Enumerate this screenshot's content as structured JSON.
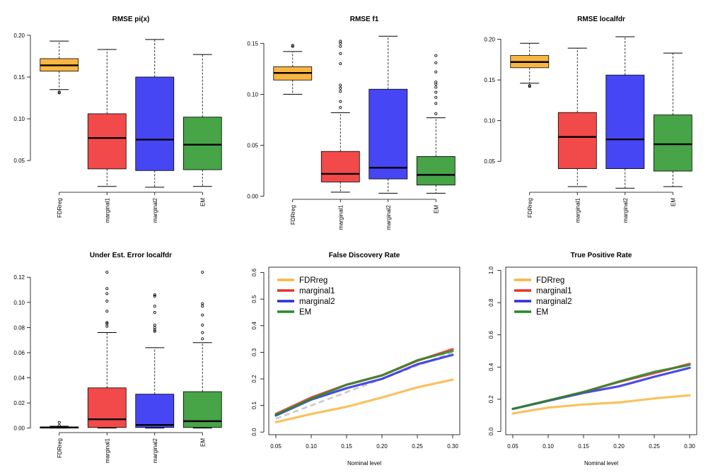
{
  "colors": {
    "FDRreg": "#F9B642",
    "marginal1": "#F24A4A",
    "marginal2": "#4646F5",
    "EM": "#47A447",
    "line_FDRreg": "#F9B642",
    "line_marginal1": "#E8302C",
    "line_marginal2": "#2B2BE0",
    "line_EM": "#2A8A2A",
    "reference": "#C8C8C8"
  },
  "chart_data": [
    {
      "type": "box",
      "title": "RMSE pi(x)",
      "categories": [
        "FDRreg",
        "marginal1",
        "marginal2",
        "EM"
      ],
      "ylim": [
        0.012,
        0.205
      ],
      "yticks": [
        0.05,
        0.1,
        0.15,
        0.2
      ],
      "ytick_labels": [
        "0.05",
        "0.10",
        "0.15",
        "0.20"
      ],
      "boxes": [
        {
          "name": "FDRreg",
          "min": 0.135,
          "q1": 0.157,
          "median": 0.164,
          "q3": 0.172,
          "max": 0.193,
          "outliers": [
            0.131,
            0.132
          ]
        },
        {
          "name": "marginal1",
          "min": 0.019,
          "q1": 0.04,
          "median": 0.077,
          "q3": 0.106,
          "max": 0.183,
          "outliers": []
        },
        {
          "name": "marginal2",
          "min": 0.018,
          "q1": 0.038,
          "median": 0.075,
          "q3": 0.15,
          "max": 0.195,
          "outliers": []
        },
        {
          "name": "EM",
          "min": 0.019,
          "q1": 0.039,
          "median": 0.069,
          "q3": 0.102,
          "max": 0.177,
          "outliers": []
        }
      ]
    },
    {
      "type": "box",
      "title": "RMSE f1",
      "categories": [
        "FDRreg",
        "marginal1",
        "marginal2",
        "EM"
      ],
      "ylim": [
        -0.003,
        0.162
      ],
      "yticks": [
        0.0,
        0.05,
        0.1,
        0.15
      ],
      "ytick_labels": [
        "0.00",
        "0.05",
        "0.10",
        "0.15"
      ],
      "boxes": [
        {
          "name": "FDRreg",
          "min": 0.1,
          "q1": 0.114,
          "median": 0.121,
          "q3": 0.127,
          "max": 0.142,
          "outliers": [
            0.147,
            0.148
          ]
        },
        {
          "name": "marginal1",
          "min": 0.004,
          "q1": 0.014,
          "median": 0.022,
          "q3": 0.044,
          "max": 0.082,
          "outliers": [
            0.087,
            0.093,
            0.103,
            0.106,
            0.109,
            0.13,
            0.14,
            0.147,
            0.15,
            0.152
          ]
        },
        {
          "name": "marginal2",
          "min": 0.003,
          "q1": 0.017,
          "median": 0.028,
          "q3": 0.105,
          "max": 0.157,
          "outliers": []
        },
        {
          "name": "EM",
          "min": 0.003,
          "q1": 0.011,
          "median": 0.021,
          "q3": 0.039,
          "max": 0.077,
          "outliers": [
            0.081,
            0.091,
            0.097,
            0.102,
            0.107,
            0.11,
            0.112,
            0.122,
            0.131,
            0.138
          ]
        }
      ]
    },
    {
      "type": "box",
      "title": "RMSE localfdr",
      "categories": [
        "FDRreg",
        "marginal1",
        "marginal2",
        "EM"
      ],
      "ylim": [
        0.012,
        0.21
      ],
      "yticks": [
        0.05,
        0.1,
        0.15,
        0.2
      ],
      "ytick_labels": [
        "0.05",
        "0.10",
        "0.15",
        "0.20"
      ],
      "boxes": [
        {
          "name": "FDRreg",
          "min": 0.146,
          "q1": 0.165,
          "median": 0.172,
          "q3": 0.18,
          "max": 0.195,
          "outliers": [
            0.142,
            0.143
          ]
        },
        {
          "name": "marginal1",
          "min": 0.019,
          "q1": 0.041,
          "median": 0.08,
          "q3": 0.11,
          "max": 0.189,
          "outliers": []
        },
        {
          "name": "marginal2",
          "min": 0.017,
          "q1": 0.041,
          "median": 0.077,
          "q3": 0.156,
          "max": 0.203,
          "outliers": []
        },
        {
          "name": "EM",
          "min": 0.019,
          "q1": 0.038,
          "median": 0.071,
          "q3": 0.107,
          "max": 0.183,
          "outliers": []
        }
      ]
    },
    {
      "type": "box",
      "title": "Under Est. Error localfdr",
      "categories": [
        "FDRreg",
        "marginal1",
        "marginal2",
        "EM"
      ],
      "ylim": [
        -0.003,
        0.128
      ],
      "yticks": [
        0.0,
        0.02,
        0.04,
        0.06,
        0.08,
        0.1,
        0.12
      ],
      "ytick_labels": [
        "0.00",
        "0.02",
        "0.04",
        "0.06",
        "0.08",
        "0.10",
        "0.12"
      ],
      "boxes": [
        {
          "name": "FDRreg",
          "min": 0.0,
          "q1": 0.0,
          "median": 0.0005,
          "q3": 0.001,
          "max": 0.0015,
          "outliers": [
            0.002,
            0.0045
          ]
        },
        {
          "name": "marginal1",
          "min": 0.0,
          "q1": 0.0005,
          "median": 0.007,
          "q3": 0.032,
          "max": 0.076,
          "outliers": [
            0.081,
            0.083,
            0.084,
            0.093,
            0.101,
            0.107,
            0.111,
            0.124
          ]
        },
        {
          "name": "marginal2",
          "min": 0.0,
          "q1": 0.0005,
          "median": 0.0025,
          "q3": 0.027,
          "max": 0.064,
          "outliers": [
            0.077,
            0.078,
            0.08,
            0.082,
            0.092,
            0.097,
            0.105,
            0.106
          ]
        },
        {
          "name": "EM",
          "min": 0.0,
          "q1": 0.0005,
          "median": 0.0055,
          "q3": 0.029,
          "max": 0.068,
          "outliers": [
            0.071,
            0.076,
            0.082,
            0.09,
            0.097,
            0.099,
            0.124
          ]
        }
      ]
    },
    {
      "type": "line",
      "title": "False Discovery Rate",
      "xlabel": "Nominal level",
      "x": [
        0.05,
        0.1,
        0.15,
        0.2,
        0.25,
        0.3
      ],
      "xticks": [
        0.05,
        0.1,
        0.15,
        0.2,
        0.25,
        0.3
      ],
      "xtick_labels": [
        "0.05",
        "0.10",
        "0.15",
        "0.20",
        "0.25",
        "0.30"
      ],
      "xlim": [
        0.04,
        0.31
      ],
      "ylim": [
        -0.01,
        0.62
      ],
      "yticks": [
        0.0,
        0.1,
        0.2,
        0.3,
        0.4,
        0.5,
        0.6
      ],
      "ytick_labels": [
        "0.0",
        "0.1",
        "0.2",
        "0.3",
        "0.4",
        "0.5",
        "0.6"
      ],
      "legend": "top-left",
      "reference_line": true,
      "series": [
        {
          "name": "FDRreg",
          "values": [
            0.037,
            0.068,
            0.095,
            0.13,
            0.168,
            0.197
          ]
        },
        {
          "name": "marginal1",
          "values": [
            0.068,
            0.13,
            0.178,
            0.213,
            0.268,
            0.312
          ]
        },
        {
          "name": "marginal2",
          "values": [
            0.062,
            0.122,
            0.165,
            0.2,
            0.255,
            0.29
          ]
        },
        {
          "name": "EM",
          "values": [
            0.065,
            0.125,
            0.178,
            0.213,
            0.27,
            0.305
          ]
        }
      ]
    },
    {
      "type": "line",
      "title": "True Positive Rate",
      "xlabel": "Nominal level",
      "x": [
        0.05,
        0.1,
        0.15,
        0.2,
        0.25,
        0.3
      ],
      "xticks": [
        0.05,
        0.1,
        0.15,
        0.2,
        0.25,
        0.3
      ],
      "xtick_labels": [
        "0.05",
        "0.10",
        "0.15",
        "0.20",
        "0.25",
        "0.30"
      ],
      "xlim": [
        0.04,
        0.31
      ],
      "ylim": [
        -0.02,
        1.02
      ],
      "yticks": [
        0.0,
        0.2,
        0.4,
        0.6,
        0.8,
        1.0
      ],
      "ytick_labels": [
        "0.0",
        "0.2",
        "0.4",
        "0.6",
        "0.8",
        "1.0"
      ],
      "legend": "top-left",
      "reference_line": false,
      "series": [
        {
          "name": "FDRreg",
          "values": [
            0.112,
            0.148,
            0.168,
            0.18,
            0.205,
            0.225
          ]
        },
        {
          "name": "marginal1",
          "values": [
            0.14,
            0.192,
            0.245,
            0.308,
            0.362,
            0.42
          ]
        },
        {
          "name": "marginal2",
          "values": [
            0.14,
            0.19,
            0.24,
            0.28,
            0.34,
            0.395
          ]
        },
        {
          "name": "EM",
          "values": [
            0.14,
            0.192,
            0.245,
            0.31,
            0.37,
            0.413
          ]
        }
      ]
    }
  ]
}
